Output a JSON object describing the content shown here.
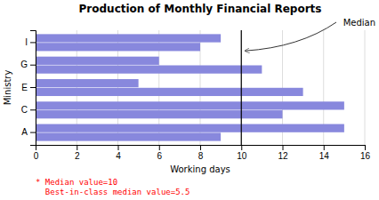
{
  "chart_data": {
    "type": "bar",
    "orientation": "horizontal",
    "title": "Production of Monthly Financial Reports",
    "x_label": "Working days",
    "y_label": "Ministry",
    "categories": [
      "A",
      "C",
      "E",
      "G",
      "I"
    ],
    "series": [
      {
        "values": [
          15,
          15,
          5,
          6,
          9
        ]
      },
      {
        "values": [
          9,
          12,
          13,
          11,
          8
        ]
      }
    ],
    "color": "#8888dd",
    "xlim": [
      0,
      16
    ],
    "xticks": [
      0,
      2,
      4,
      6,
      8,
      10,
      12,
      14,
      16
    ],
    "grid": true,
    "median": {
      "value": 10,
      "label": "Median"
    },
    "annotations": [
      {
        "text": "* Median value=10",
        "color": "red"
      },
      {
        "text": "  Best-in-class median value=5.5",
        "color": "red"
      }
    ]
  }
}
